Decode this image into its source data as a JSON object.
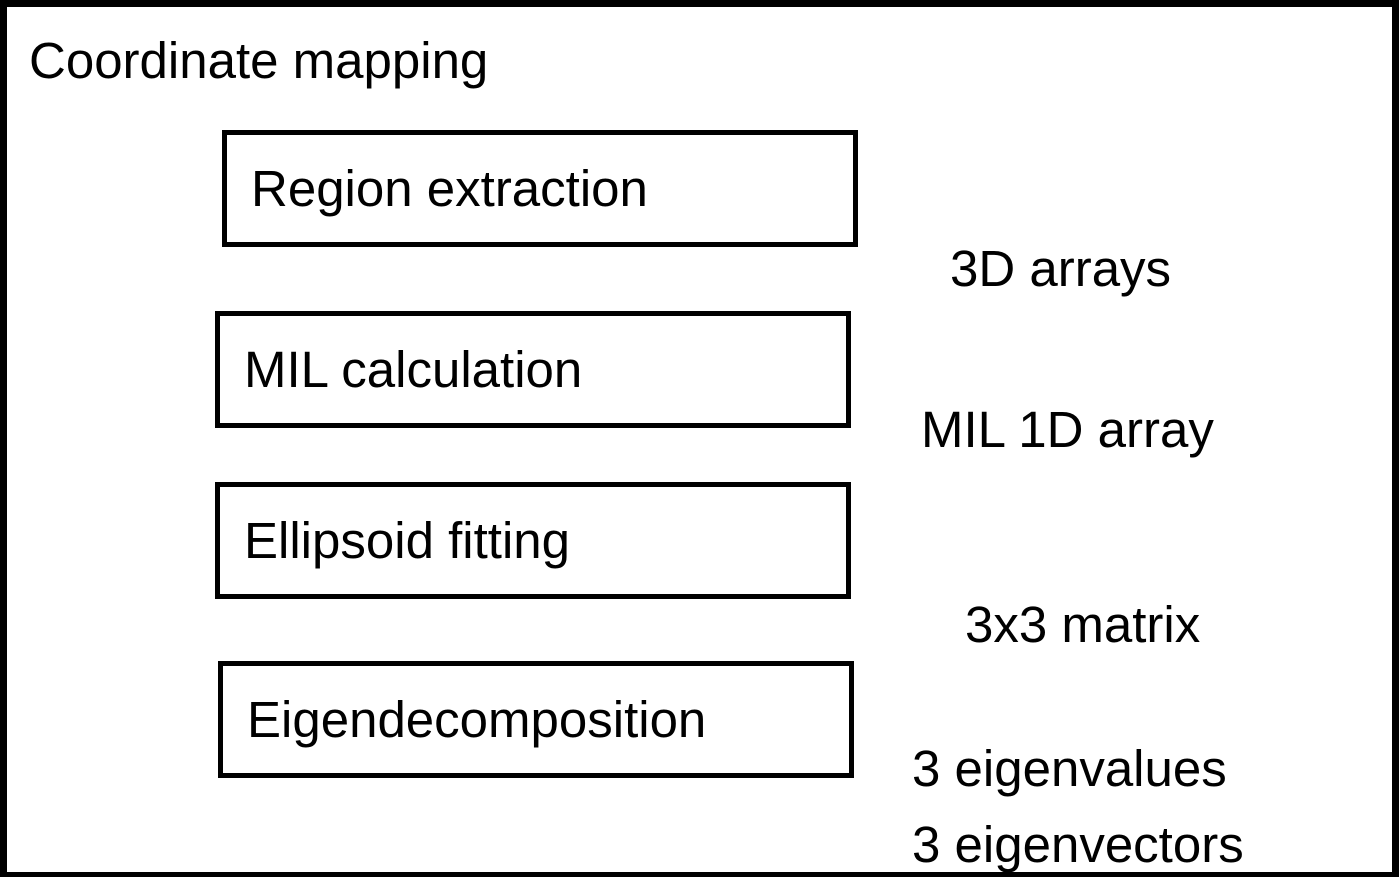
{
  "diagram": {
    "title": "Coordinate mapping",
    "steps": [
      {
        "label": "Region extraction"
      },
      {
        "label": "MIL calculation"
      },
      {
        "label": "Ellipsoid fitting"
      },
      {
        "label": "Eigendecomposition"
      }
    ],
    "data_labels": [
      "3D arrays",
      "MIL 1D array",
      "3x3 matrix",
      "3 eigenvalues",
      "3 eigenvectors"
    ]
  },
  "colors": {
    "stroke": "#000000",
    "background": "#ffffff",
    "text": "#000000"
  }
}
